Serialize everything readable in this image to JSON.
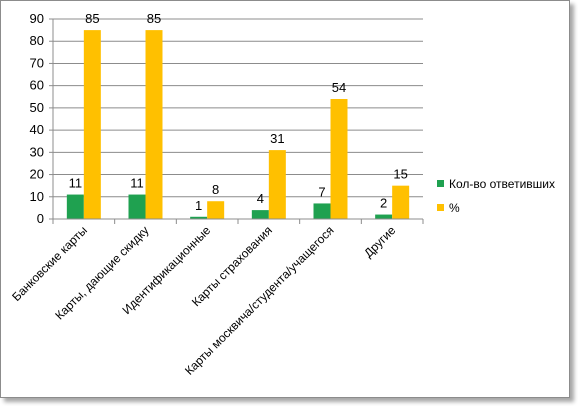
{
  "chart_data": {
    "type": "bar",
    "categories": [
      "Банковские карты",
      "Карты, дающие скидку",
      "Идентификационные",
      "Карты страхования",
      "Карты москвича/студента/учащегося",
      "Другие"
    ],
    "series": [
      {
        "name": "Кол-во ответивших",
        "values": [
          11,
          11,
          1,
          4,
          7,
          2
        ],
        "color": "#1fa150"
      },
      {
        "name": "%",
        "values": [
          85,
          85,
          8,
          31,
          54,
          15
        ],
        "color": "#ffc000"
      }
    ],
    "ylim": [
      0,
      90
    ],
    "yticks": [
      0,
      10,
      20,
      30,
      40,
      50,
      60,
      70,
      80,
      90
    ],
    "grid": true,
    "legend_position": "right",
    "title": "",
    "xlabel": "",
    "ylabel": ""
  }
}
